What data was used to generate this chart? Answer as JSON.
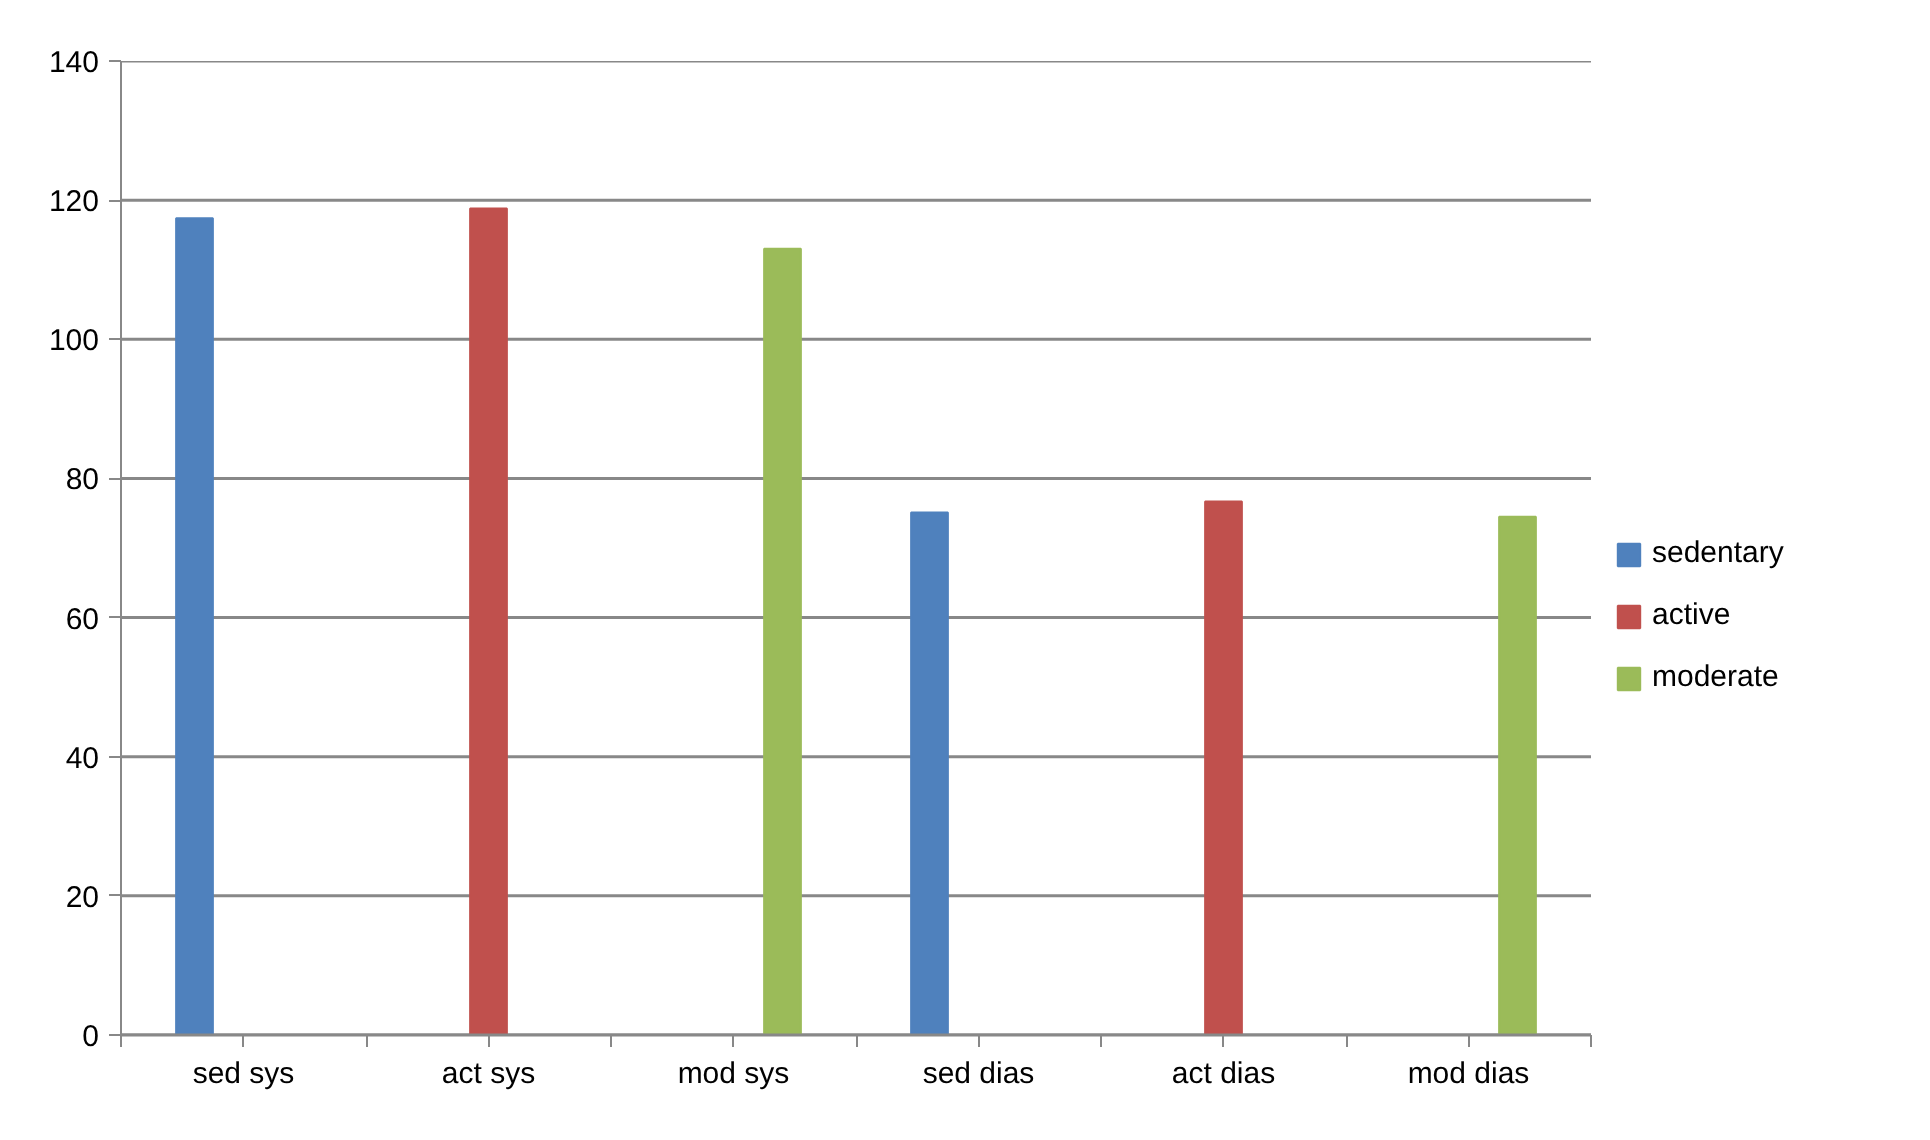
{
  "chart_data": {
    "type": "bar",
    "categories": [
      "sed sys",
      "act sys",
      "mod sys",
      "sed dias",
      "act dias",
      "mod dias"
    ],
    "series": [
      {
        "name": "sedentary",
        "color": "#4f81bd",
        "values": [
          117.4,
          null,
          null,
          75.1,
          null,
          null
        ]
      },
      {
        "name": "active",
        "color": "#c0504d",
        "values": [
          null,
          118.8,
          null,
          null,
          76.7,
          null
        ]
      },
      {
        "name": "moderate",
        "color": "#9bbb59",
        "values": [
          null,
          null,
          113.0,
          null,
          null,
          74.5
        ]
      }
    ],
    "ylim": [
      0,
      140
    ],
    "yticks": [
      0,
      20,
      40,
      60,
      80,
      100,
      120,
      140
    ],
    "grid": "y",
    "legend": "right"
  }
}
